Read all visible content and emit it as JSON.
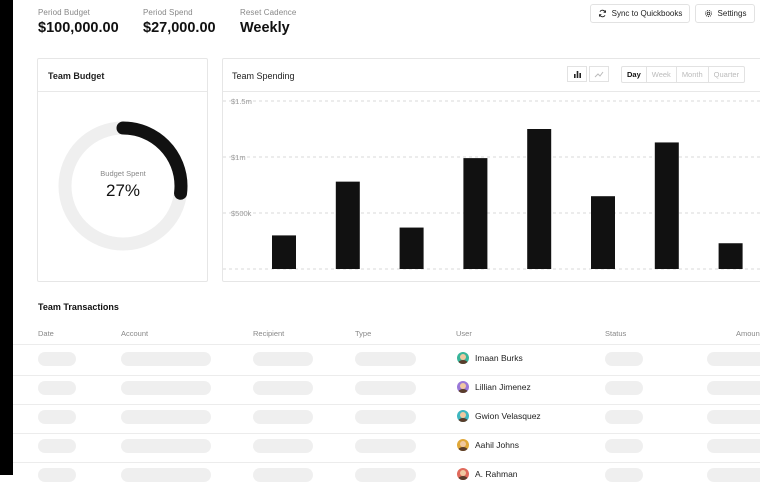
{
  "stats": [
    {
      "label": "Period Budget",
      "value": "$100,000.00"
    },
    {
      "label": "Period Spend",
      "value": "$27,000.00"
    },
    {
      "label": "Reset Cadence",
      "value": "Weekly"
    }
  ],
  "header": {
    "sync_label": "Sync to Quickbooks",
    "settings_label": "Settings"
  },
  "budget_card": {
    "title": "Team Budget",
    "donut_label": "Budget Spent",
    "donut_value": "27%",
    "percent_spent": 0.27
  },
  "spending_card": {
    "title": "Team Spending",
    "ranges": [
      "Day",
      "Week",
      "Month",
      "Quarter"
    ],
    "selected_range": "Day"
  },
  "chart_data": {
    "type": "bar",
    "title": "Team Spending",
    "categories": [
      "",
      "",
      "",
      "",
      "",
      "",
      "",
      ""
    ],
    "values": [
      300000,
      780000,
      370000,
      990000,
      1250000,
      650000,
      1130000,
      230000
    ],
    "yticks": [
      {
        "value": 1500000,
        "label": "$1.5m"
      },
      {
        "value": 1000000,
        "label": "$1m"
      },
      {
        "value": 500000,
        "label": "$500k"
      }
    ],
    "ylim": [
      0,
      1500000
    ],
    "grid": true,
    "bar_color": "#111111"
  },
  "transactions": {
    "title": "Team Transactions",
    "columns": [
      "Date",
      "Account",
      "Recipient",
      "Type",
      "User",
      "Status",
      "Amoun"
    ],
    "users": [
      {
        "name": "Imaan Burks",
        "color": "#39b59a"
      },
      {
        "name": "Lillian Jimenez",
        "color": "#9a78d8"
      },
      {
        "name": "Gwion Velasquez",
        "color": "#3fb7c0"
      },
      {
        "name": "Aahil Johns",
        "color": "#e0a83a"
      },
      {
        "name": "A. Rahman",
        "color": "#e06a5c"
      }
    ]
  }
}
